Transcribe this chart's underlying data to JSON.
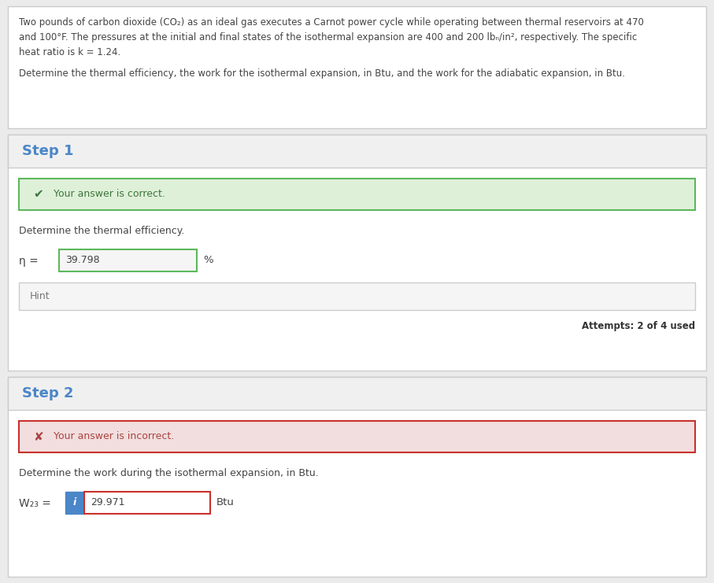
{
  "problem_lines": [
    "Two pounds of carbon dioxide (CO₂) as an ideal gas executes a Carnot power cycle while operating between thermal reservoirs at 470",
    "and 100°F. The pressures at the initial and final states of the isothermal expansion are 400 and 200 lbₙ/in², respectively. The specific",
    "heat ratio is k = 1.24.",
    "",
    "Determine the thermal efficiency, the work for the isothermal expansion, in Btu, and the work for the adiabatic expansion, in Btu."
  ],
  "step1_label": "Step 1",
  "step1_correct_text": "Your answer is correct.",
  "step1_question": "Determine the thermal efficiency.",
  "step1_var": "η =",
  "step1_value": "39.798",
  "step1_unit": "%",
  "step1_hint": "Hint",
  "step1_attempts": "Attempts: 2 of 4 used",
  "step2_label": "Step 2",
  "step2_incorrect_text": "Your answer is incorrect.",
  "step2_question": "Determine the work during the isothermal expansion, in Btu.",
  "step2_var": "W₂₃ =",
  "step2_value": "29.971",
  "step2_unit": "Btu",
  "bg_color": "#ebebeb",
  "white": "#ffffff",
  "step_header_bg": "#f0f0f0",
  "step_header_color": "#4a86c8",
  "correct_bg": "#dff0d8",
  "correct_border": "#5cb85c",
  "correct_text_color": "#3c763d",
  "incorrect_bg": "#f2dede",
  "incorrect_border": "#c9302c",
  "incorrect_text_color": "#a94442",
  "text_color": "#444444",
  "gray_text": "#777777",
  "input_bg": "#f5f5f5",
  "input_border": "#aaaaaa",
  "input_border_incorrect": "#c9302c",
  "hint_bg": "#f5f5f5",
  "hint_border": "#cccccc",
  "info_icon_bg": "#4a86c8",
  "outer_border": "#cccccc",
  "attempts_color": "#333333"
}
